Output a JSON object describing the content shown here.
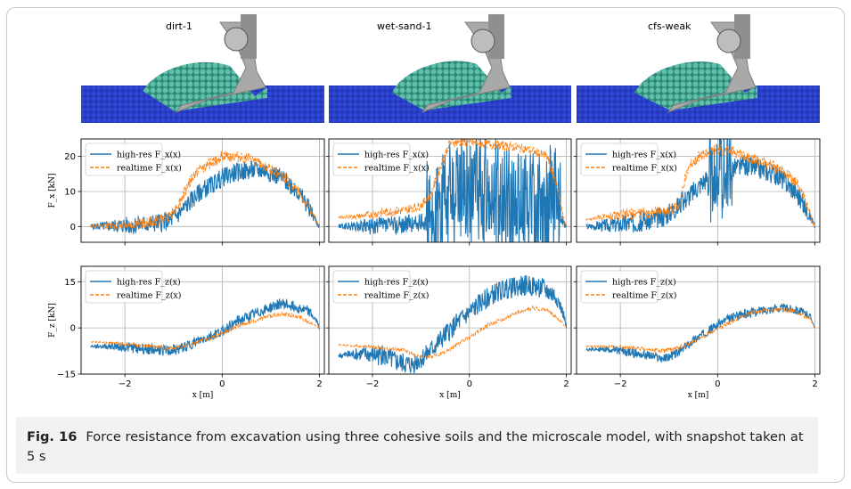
{
  "figure": {
    "panel_titles": [
      "dirt-1",
      "wet-sand-1",
      "cfs-weak"
    ],
    "caption_label": "Fig. 16",
    "caption_text": "Force resistance from excavation using three cohesive soils and the microscale model, with snapshot taken at 5 s"
  },
  "colors": {
    "high_res": "#1f77b4",
    "realtime": "#ff7f0e",
    "soil": "#2a3fc0",
    "particles": "#3aa08a",
    "bucket": "#a9a9a9"
  },
  "chart_data": [
    {
      "type": "line",
      "row": "Fx",
      "soil": "dirt-1",
      "ylabel": "F_x [kN]",
      "xlabel": "",
      "xlim": [
        -2.9,
        2.1
      ],
      "ylim": [
        -4.5,
        25
      ],
      "yticks": [
        0,
        10,
        20
      ],
      "xticks": [
        -2,
        0,
        2
      ],
      "grid": true,
      "legend": "top-left",
      "series": [
        {
          "name": "high-res F_x(x)",
          "style": "solid",
          "noise": 2.0,
          "x": [
            -2.7,
            -2.2,
            -1.8,
            -1.4,
            -1.1,
            -0.9,
            -0.7,
            -0.4,
            -0.2,
            0.0,
            0.3,
            0.6,
            0.9,
            1.2,
            1.5,
            1.8,
            1.95,
            2.0
          ],
          "values": [
            0,
            0.2,
            0.4,
            1.0,
            1.5,
            3.5,
            6.5,
            10.5,
            12,
            14,
            15.5,
            16,
            16,
            14,
            11,
            5,
            1,
            0
          ]
        },
        {
          "name": "realtime F_x(x)",
          "style": "dashed",
          "noise": 1.2,
          "x": [
            -2.7,
            -2.2,
            -1.8,
            -1.4,
            -1.1,
            -0.9,
            -0.7,
            -0.5,
            -0.3,
            0.0,
            0.3,
            0.6,
            0.9,
            1.2,
            1.5,
            1.8,
            1.95,
            2.0
          ],
          "values": [
            0,
            0.3,
            0.6,
            1.4,
            3,
            6,
            12,
            16,
            17.5,
            20,
            20,
            19,
            17,
            15,
            11,
            5,
            1,
            0
          ]
        }
      ]
    },
    {
      "type": "line",
      "row": "Fx",
      "soil": "wet-sand-1",
      "ylabel": "",
      "xlabel": "",
      "xlim": [
        -2.9,
        2.1
      ],
      "ylim": [
        -4.5,
        25
      ],
      "yticks": [
        0,
        10,
        20
      ],
      "xticks": [
        -2,
        0,
        2
      ],
      "grid": true,
      "legend": "top-left",
      "series": [
        {
          "name": "high-res F_x(x)",
          "style": "solid",
          "noise": 2.0,
          "x": [
            -2.7,
            -2.0,
            -1.5,
            -1.0,
            -0.9,
            -0.6,
            -0.3,
            0.0,
            0.3,
            0.6,
            0.9,
            1.2,
            1.5,
            1.8,
            1.95,
            2.0
          ],
          "values": [
            0,
            0,
            0.5,
            1,
            2,
            8,
            10,
            11,
            10,
            9,
            8,
            7,
            6,
            5,
            1,
            0
          ],
          "burst": [
            -0.9,
            1.9
          ],
          "burst_amp": 16
        },
        {
          "name": "realtime F_x(x)",
          "style": "dashed",
          "noise": 1.0,
          "x": [
            -2.7,
            -2.2,
            -1.8,
            -1.4,
            -1.0,
            -0.8,
            -0.6,
            -0.4,
            0.0,
            0.4,
            0.8,
            1.2,
            1.6,
            1.8,
            1.95,
            2.0
          ],
          "values": [
            2.5,
            3,
            4,
            4.5,
            6,
            9,
            17,
            24,
            24,
            23.5,
            23,
            22,
            20,
            12,
            2,
            0
          ]
        }
      ]
    },
    {
      "type": "line",
      "row": "Fx",
      "soil": "cfs-weak",
      "ylabel": "",
      "xlabel": "",
      "xlim": [
        -2.9,
        2.1
      ],
      "ylim": [
        -4.5,
        25
      ],
      "yticks": [
        0,
        10,
        20
      ],
      "xticks": [
        -2,
        0,
        2
      ],
      "grid": true,
      "legend": "top-left",
      "series": [
        {
          "name": "high-res F_x(x)",
          "style": "solid",
          "noise": 2.2,
          "x": [
            -2.7,
            -2.2,
            -1.8,
            -1.4,
            -1.1,
            -0.8,
            -0.5,
            -0.3,
            -0.1,
            0.1,
            0.4,
            0.7,
            1.0,
            1.3,
            1.6,
            1.9,
            2.0
          ],
          "values": [
            0,
            0.5,
            1,
            1.8,
            3,
            6,
            10,
            13,
            15,
            16,
            17,
            17,
            16,
            14,
            10,
            3,
            0
          ],
          "burst": [
            -0.2,
            0.3
          ],
          "burst_amp": 12
        },
        {
          "name": "realtime F_x(x)",
          "style": "dashed",
          "noise": 1.2,
          "x": [
            -2.7,
            -2.2,
            -1.8,
            -1.4,
            -1.0,
            -0.8,
            -0.6,
            -0.4,
            0.0,
            0.4,
            0.8,
            1.2,
            1.6,
            1.8,
            1.95,
            2.0
          ],
          "values": [
            2,
            3,
            3.5,
            4,
            4.5,
            6,
            17,
            20,
            22,
            21,
            19,
            17,
            13,
            8,
            1,
            0
          ]
        }
      ]
    },
    {
      "type": "line",
      "row": "Fz",
      "soil": "dirt-1",
      "ylabel": "F_z [kN]",
      "xlabel": "x [m]",
      "xlim": [
        -2.9,
        2.1
      ],
      "ylim": [
        -15,
        20
      ],
      "yticks": [
        -15,
        0,
        15
      ],
      "xticks": [
        -2,
        0,
        2
      ],
      "grid": true,
      "legend": "top-left",
      "series": [
        {
          "name": "high-res F_z(x)",
          "style": "solid",
          "noise": 1.3,
          "x": [
            -2.7,
            -2.2,
            -1.8,
            -1.4,
            -1.1,
            -0.9,
            -0.6,
            -0.3,
            0.0,
            0.3,
            0.6,
            0.9,
            1.2,
            1.5,
            1.8,
            1.95,
            2.0
          ],
          "values": [
            -6,
            -6,
            -6.5,
            -7,
            -7.5,
            -7,
            -5,
            -3,
            -1,
            2,
            4,
            6,
            8,
            7,
            5,
            2,
            0
          ]
        },
        {
          "name": "realtime F_z(x)",
          "style": "dashed",
          "noise": 0.5,
          "x": [
            -2.7,
            -2.2,
            -1.8,
            -1.4,
            -1.1,
            -0.8,
            -0.5,
            -0.2,
            0.1,
            0.4,
            0.7,
            1.0,
            1.3,
            1.6,
            1.9,
            2.0
          ],
          "values": [
            -4.5,
            -5,
            -5.5,
            -6,
            -6.8,
            -6,
            -4.5,
            -3,
            -1,
            1,
            2.5,
            4,
            4.5,
            3.5,
            1,
            0
          ]
        }
      ]
    },
    {
      "type": "line",
      "row": "Fz",
      "soil": "wet-sand-1",
      "ylabel": "",
      "xlabel": "x [m]",
      "xlim": [
        -2.9,
        2.1
      ],
      "ylim": [
        -15,
        20
      ],
      "yticks": [
        -15,
        0,
        15
      ],
      "xticks": [
        -2,
        0,
        2
      ],
      "grid": true,
      "legend": "top-left",
      "series": [
        {
          "name": "high-res F_z(x)",
          "style": "solid",
          "noise": 2.5,
          "x": [
            -2.7,
            -2.2,
            -1.8,
            -1.5,
            -1.2,
            -0.9,
            -0.6,
            -0.3,
            0.0,
            0.3,
            0.6,
            0.9,
            1.2,
            1.5,
            1.8,
            1.95,
            2.0
          ],
          "values": [
            -9,
            -8.5,
            -9,
            -11,
            -12,
            -9,
            -4,
            1,
            5,
            9,
            12,
            13,
            14,
            13,
            10,
            4,
            0
          ]
        },
        {
          "name": "realtime F_z(x)",
          "style": "dashed",
          "noise": 0.5,
          "x": [
            -2.7,
            -2.2,
            -1.8,
            -1.4,
            -1.1,
            -0.8,
            -0.5,
            -0.2,
            0.1,
            0.4,
            0.7,
            1.0,
            1.3,
            1.6,
            1.9,
            2.0
          ],
          "values": [
            -5.5,
            -6,
            -6.5,
            -7,
            -9,
            -9.5,
            -8,
            -5,
            -2,
            1,
            3,
            5,
            6.5,
            6,
            2,
            0
          ]
        }
      ]
    },
    {
      "type": "line",
      "row": "Fz",
      "soil": "cfs-weak",
      "ylabel": "",
      "xlabel": "x [m]",
      "xlim": [
        -2.9,
        2.1
      ],
      "ylim": [
        -15,
        20
      ],
      "yticks": [
        -15,
        0,
        15
      ],
      "xticks": [
        -2,
        0,
        2
      ],
      "grid": true,
      "legend": "top-left",
      "series": [
        {
          "name": "high-res F_z(x)",
          "style": "solid",
          "noise": 1.1,
          "x": [
            -2.7,
            -2.2,
            -1.8,
            -1.4,
            -1.1,
            -0.8,
            -0.5,
            -0.2,
            0.1,
            0.4,
            0.7,
            1.0,
            1.3,
            1.6,
            1.9,
            2.0
          ],
          "values": [
            -7,
            -7,
            -8,
            -9,
            -10,
            -8,
            -4,
            -1,
            2,
            4,
            5,
            6,
            6.5,
            6,
            4,
            0
          ]
        },
        {
          "name": "realtime F_z(x)",
          "style": "dashed",
          "noise": 0.5,
          "x": [
            -2.7,
            -2.2,
            -1.8,
            -1.4,
            -1.1,
            -0.8,
            -0.5,
            -0.2,
            0.1,
            0.4,
            0.7,
            1.0,
            1.3,
            1.6,
            1.9,
            2.0
          ],
          "values": [
            -6,
            -6,
            -6.5,
            -7,
            -7.5,
            -6.5,
            -4.5,
            -2,
            0.5,
            3,
            5,
            6,
            6,
            5.5,
            3,
            0
          ]
        }
      ]
    }
  ]
}
